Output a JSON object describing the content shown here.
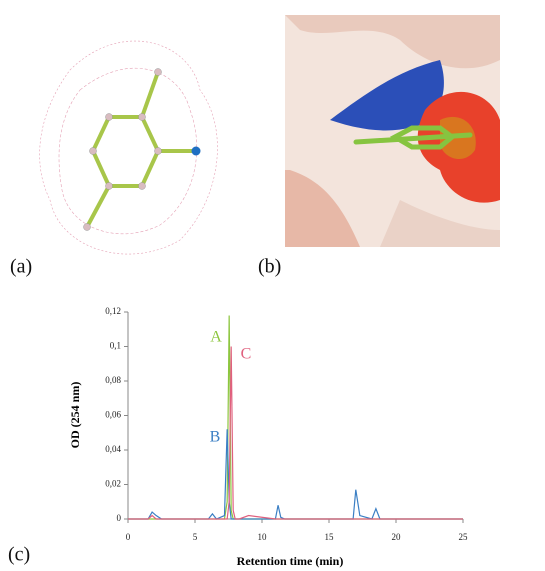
{
  "panels": [
    "(a)",
    "(b)",
    "(c)"
  ],
  "chart_data": {
    "type": "line",
    "x_label": "Retention time (min)",
    "y_label": "OD (254 nm)",
    "x": [
      0,
      1.5,
      1.8,
      2.1,
      2.5,
      6,
      6.3,
      6.6,
      7.2,
      7.4,
      7.55,
      7.7,
      7.85,
      8.0,
      8.3,
      9,
      11,
      11.2,
      11.4,
      11.7,
      15,
      16.8,
      17,
      17.3,
      18.2,
      18.5,
      18.8,
      20,
      25
    ],
    "series": [
      {
        "name": "A",
        "color": "#8dc63f",
        "values": [
          0,
          0,
          0,
          0,
          0,
          0,
          0,
          0,
          0,
          0.01,
          0.118,
          0.005,
          0,
          0,
          0,
          0,
          0,
          0,
          0,
          0,
          0,
          0,
          0,
          0,
          0,
          0,
          0,
          0,
          0
        ]
      },
      {
        "name": "B",
        "color": "#3b7fc4",
        "values": [
          0,
          0,
          0.004,
          0.002,
          0,
          0,
          0.003,
          0,
          0.002,
          0.052,
          0.01,
          0,
          0,
          0,
          0,
          0,
          0,
          0.008,
          0.001,
          0,
          0,
          0,
          0.017,
          0.002,
          0,
          0.006,
          0,
          0,
          0
        ]
      },
      {
        "name": "C",
        "color": "#e0607e",
        "values": [
          0,
          0,
          0.002,
          0,
          0,
          0,
          0,
          0,
          0,
          0,
          0.01,
          0.1,
          0.005,
          0,
          0,
          0.002,
          0,
          0,
          0,
          0,
          0,
          0,
          0,
          0,
          0,
          0,
          0,
          0,
          0
        ]
      }
    ],
    "xlim": [
      0,
      25
    ],
    "xticks": [
      0,
      5,
      10,
      15,
      20,
      25
    ],
    "ylim": [
      0,
      0.12
    ],
    "yticks": [
      0,
      {
        "value": 0.02,
        "label": "0,02"
      },
      {
        "value": 0.04,
        "label": "0,04"
      },
      {
        "value": 0.06,
        "label": "0,06"
      },
      {
        "value": 0.08,
        "label": "0,08"
      },
      {
        "value": 0.1,
        "label": "0,1"
      },
      {
        "value": 0.12,
        "label": "0,12"
      }
    ]
  }
}
